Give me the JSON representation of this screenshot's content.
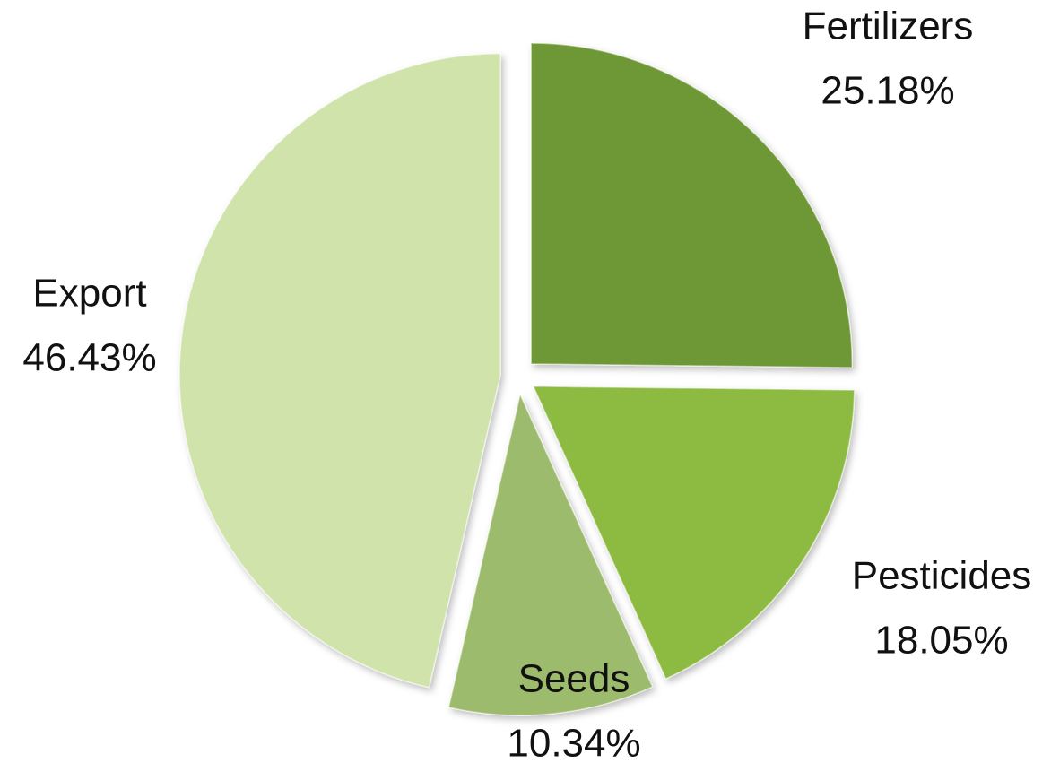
{
  "chart_data": {
    "type": "pie",
    "categories": [
      "Fertilizers",
      "Pesticides",
      "Seeds",
      "Export"
    ],
    "values": [
      25.18,
      18.05,
      10.34,
      46.43
    ],
    "value_labels": [
      "25.18%",
      "18.05%",
      "10.34%",
      "46.43%"
    ],
    "colors": [
      "#6e9834",
      "#8dbb43",
      "#9cbb6c",
      "#cfe3aa"
    ]
  }
}
